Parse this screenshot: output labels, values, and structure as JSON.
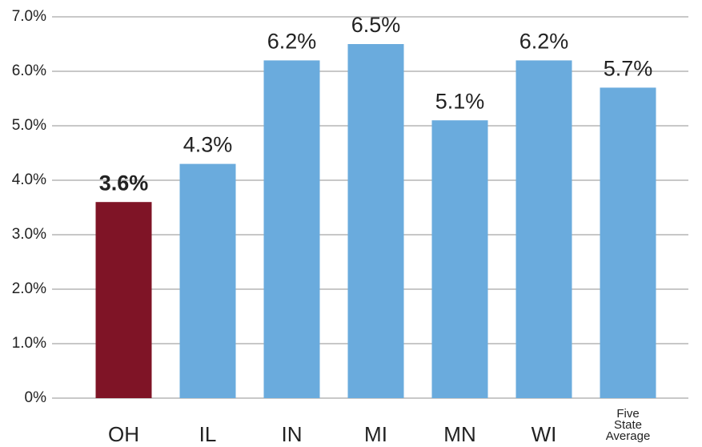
{
  "chart_data": {
    "type": "bar",
    "categories": [
      "OH",
      "IL",
      "IN",
      "MI",
      "MN",
      "WI",
      "Five State Average"
    ],
    "values": [
      3.6,
      4.3,
      6.2,
      6.5,
      5.1,
      6.2,
      5.7
    ],
    "value_labels": [
      "3.6%",
      "4.3%",
      "6.2%",
      "6.5%",
      "5.1%",
      "6.2%",
      "5.7%"
    ],
    "colors": [
      "#7f1426",
      "#6aabdd",
      "#6aabdd",
      "#6aabdd",
      "#6aabdd",
      "#6aabdd",
      "#6aabdd"
    ],
    "ylim": [
      0,
      7
    ],
    "yticks": [
      {
        "value": 0,
        "label": "0%"
      },
      {
        "value": 1,
        "label": "1.0%"
      },
      {
        "value": 2,
        "label": "2.0%"
      },
      {
        "value": 3,
        "label": "3.0%"
      },
      {
        "value": 4,
        "label": "4.0%"
      },
      {
        "value": 5,
        "label": "5.0%"
      },
      {
        "value": 6,
        "label": "6.0%"
      },
      {
        "value": 7,
        "label": "7.0%"
      }
    ],
    "grid": true
  }
}
